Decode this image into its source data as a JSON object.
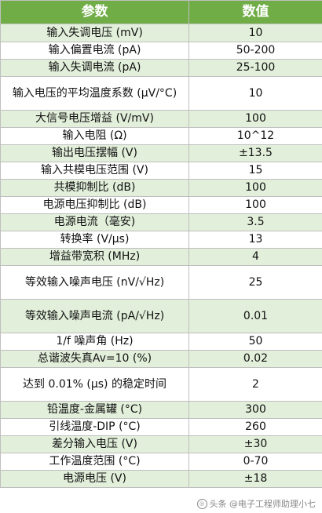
{
  "header": {
    "param": "参数",
    "value": "数值"
  },
  "rows": [
    {
      "param": "输入失调电压 (mV)",
      "value": "10",
      "h": 23
    },
    {
      "param": "输入偏置电流 (pA)",
      "value": "50-200",
      "h": 22
    },
    {
      "param": "输入失调电流 (pA)",
      "value": "25-100",
      "h": 22
    },
    {
      "param": "输入电压的平均温度系数 (μV/°C)",
      "value": "10",
      "h": 43
    },
    {
      "param": "大信号电压增益 (V/mV)",
      "value": "100",
      "h": 22
    },
    {
      "param": "输入电阻 (Ω)",
      "value": "10^12",
      "h": 22
    },
    {
      "param": "输出电压摆幅 (V)",
      "value": "±13.5",
      "h": 22
    },
    {
      "param": "输入共模电压范围 (V)",
      "value": "15",
      "h": 22
    },
    {
      "param": "共模抑制比 (dB)",
      "value": "100",
      "h": 22
    },
    {
      "param": "电源电压抑制比 (dB)",
      "value": "100",
      "h": 22
    },
    {
      "param": "电源电流（毫安)",
      "value": "3.5",
      "h": 22
    },
    {
      "param": "转换率 (V/μs)",
      "value": "13",
      "h": 22
    },
    {
      "param": "增益带宽积 (MHz)",
      "value": "4",
      "h": 22
    },
    {
      "param": "等效输入噪声电压 (nV/√Hz)",
      "value": "25",
      "h": 43
    },
    {
      "param": "等效输入噪声电流 (pA/√Hz)",
      "value": "0.01",
      "h": 43
    },
    {
      "param": "1/f 噪声角 (Hz)",
      "value": "50",
      "h": 22
    },
    {
      "param": "总谐波失真Av=10 (%)",
      "value": "0.02",
      "h": 22
    },
    {
      "param": "达到 0.01% (μs) 的稳定时间",
      "value": "2",
      "h": 43
    },
    {
      "param": "铅温度-金属罐 (°C)",
      "value": "300",
      "h": 22
    },
    {
      "param": "引线温度-DIP (°C)",
      "value": "260",
      "h": 22
    },
    {
      "param": "差分输入电压 (V)",
      "value": "±30",
      "h": 22
    },
    {
      "param": "工作温度范围 (°C)",
      "value": "0-70",
      "h": 22
    },
    {
      "param": "电源电压 (V)",
      "value": "±18",
      "h": 22
    }
  ],
  "watermark": {
    "text": "头条 @电子工程师助理小七"
  }
}
